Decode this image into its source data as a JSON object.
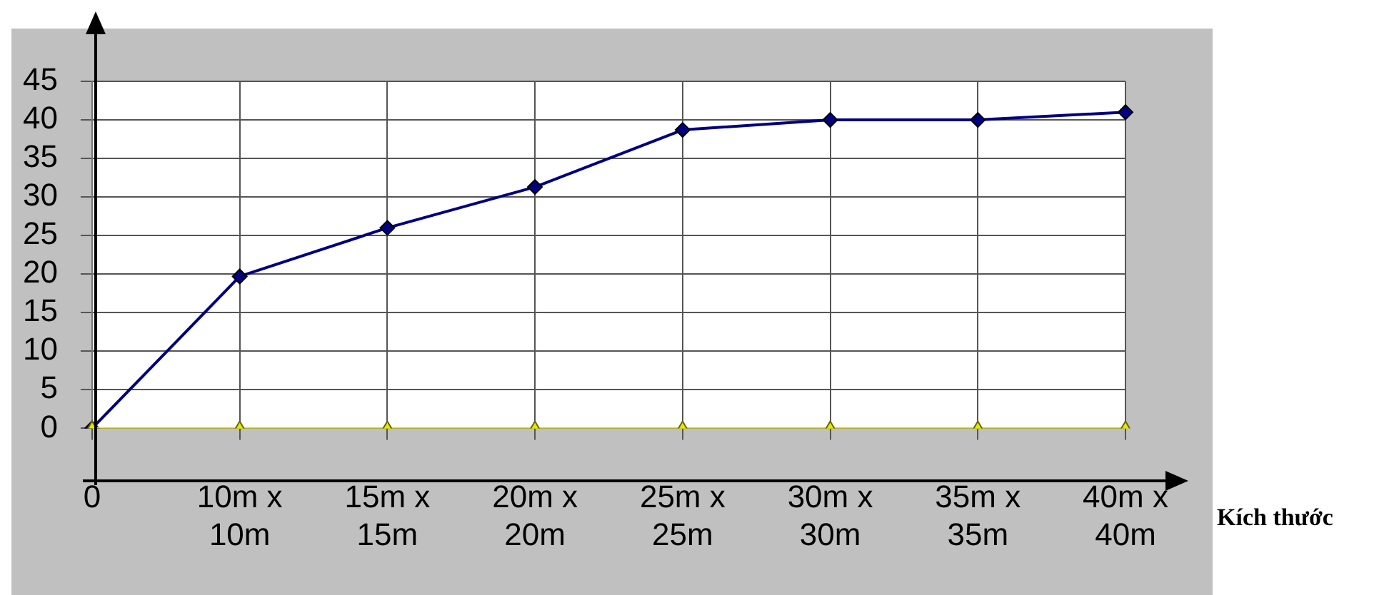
{
  "chart_data": {
    "type": "line",
    "xlabel": "Kích thước",
    "categories": [
      "0",
      "10m x\n10m",
      "15m x\n15m",
      "20m x\n20m",
      "25m x\n25m",
      "30m x\n30m",
      "35m x\n35m",
      "40m x\n40m"
    ],
    "series": [
      {
        "color": "#000080",
        "marker": "diamond",
        "values": [
          0,
          19.7,
          26,
          31.3,
          38.7,
          40,
          40,
          41
        ]
      },
      {
        "color": "#e8e800",
        "marker": "triangle",
        "values": [
          0,
          0,
          0,
          0,
          0,
          0,
          0,
          0
        ]
      }
    ],
    "ylim": [
      0,
      45
    ],
    "yticks": [
      0,
      5,
      10,
      15,
      20,
      25,
      30,
      35,
      40,
      45
    ],
    "grid": true,
    "legend": false,
    "line_style": "solid"
  }
}
